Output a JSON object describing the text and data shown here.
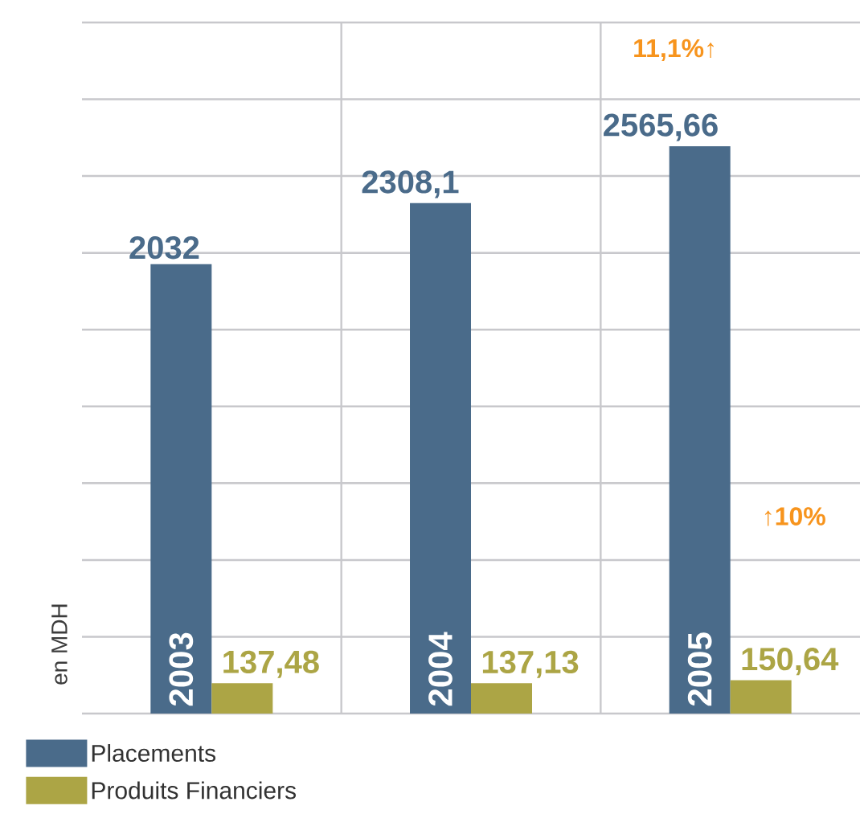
{
  "chart_data": {
    "type": "bar",
    "ylabel": "en MDH",
    "categories": [
      "2003",
      "2004",
      "2005"
    ],
    "series": [
      {
        "name": "Placements",
        "color": "#4a6b8a",
        "values": [
          2032,
          2308.1,
          2565.66
        ],
        "value_labels": [
          "2032",
          "2308,1",
          "2565,66"
        ]
      },
      {
        "name": "Produits Financiers",
        "color": "#aca545",
        "values": [
          137.48,
          137.13,
          150.64
        ],
        "value_labels": [
          "137,48",
          "137,13",
          "150,64"
        ]
      }
    ],
    "ylim": [
      0,
      3125
    ],
    "yticks": [
      {
        "value": 0,
        "label": null
      },
      {
        "value": 347,
        "label": null
      },
      {
        "value": 694,
        "label": null
      },
      {
        "value": 1042,
        "label": null
      },
      {
        "value": 1389,
        "label": null
      },
      {
        "value": 1736,
        "label": null
      },
      {
        "value": 2083,
        "label": null
      },
      {
        "value": 2431,
        "label": null
      },
      {
        "value": 2778,
        "label": null
      },
      {
        "value": 3125,
        "label": null
      }
    ],
    "grid": true,
    "legend": "bottom left",
    "annotations": [
      "11,1%↑",
      "↑10%"
    ]
  }
}
